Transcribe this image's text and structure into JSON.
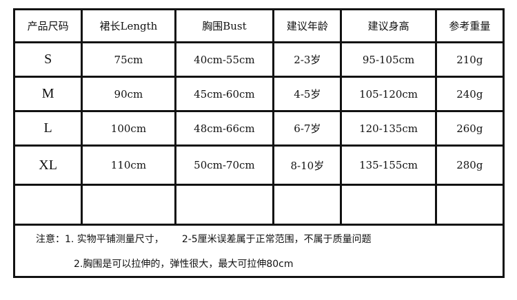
{
  "headers": [
    "产品尺码",
    "裙长Length",
    "胸围Bust",
    "建议年龄",
    "建议身高",
    "参考重量"
  ],
  "rows": [
    [
      "S",
      "75cm",
      "40cm-55cm",
      "2-3岁",
      "95-105cm",
      "210g"
    ],
    [
      "M",
      "90cm",
      "45cm-60cm",
      "4-5岁",
      "105-120cm",
      "240g"
    ],
    [
      "L",
      "100cm",
      "48cm-66cm",
      "6-7岁",
      "120-135cm",
      "260g"
    ],
    [
      "XL",
      "110cm",
      "50cm-70cm",
      "8-10岁",
      "135-155cm",
      "280g"
    ]
  ],
  "notes": {
    "line1a": "注意：1. 实物平铺测量尺寸，",
    "line1b": "2-5厘米误差属于正常范围，不属于质量问题",
    "line2": "2.胸围是可以拉伸的，弹性很大，最大可拉伸80cm"
  }
}
